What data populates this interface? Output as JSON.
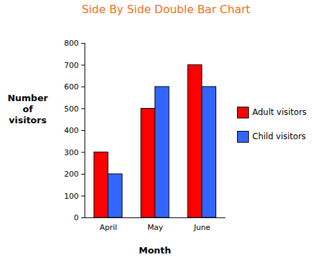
{
  "chart_data": {
    "type": "bar",
    "title": "Side By Side Double Bar Chart",
    "x_label": "Month",
    "y_label": "Number of visitors",
    "categories": [
      "April",
      "May",
      "June"
    ],
    "series": [
      {
        "name": "Adult visitors",
        "color": "#ff0000",
        "values": [
          300,
          500,
          700
        ]
      },
      {
        "name": "Child visitors",
        "color": "#3366ff",
        "values": [
          200,
          600,
          600
        ]
      }
    ],
    "ylim": [
      0,
      800
    ],
    "yticks": [
      0,
      100,
      200,
      300,
      400,
      500,
      600,
      700,
      800
    ],
    "grid": false,
    "legend": "right"
  }
}
